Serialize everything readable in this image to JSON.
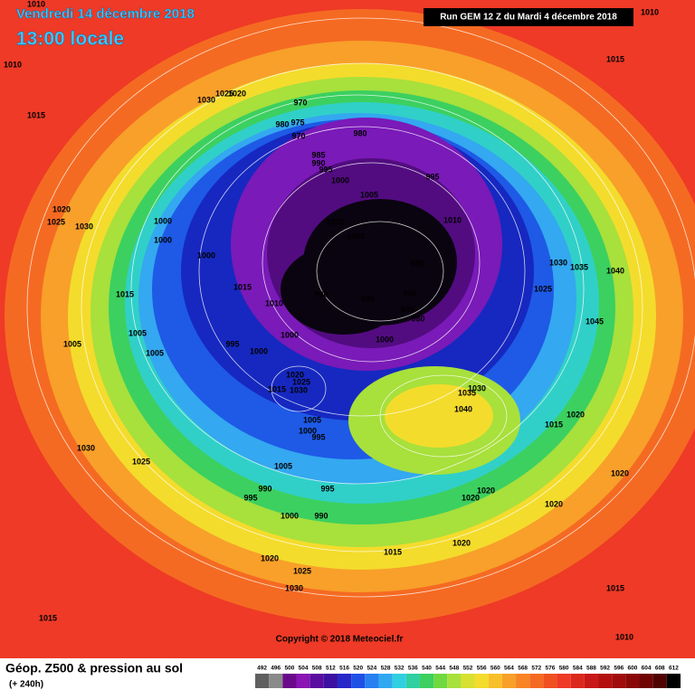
{
  "header": {
    "valid_date": "Vendredi 14 décembre 2018",
    "valid_time": "13:00 locale",
    "run": "Run GEM 12 Z du Mardi 4 décembre 2018"
  },
  "copyright": "Copyright © 2018 Meteociel.fr",
  "footer": {
    "title": "Géop. Z500 & pression au sol",
    "lead": "(+ 240h)"
  },
  "legend": {
    "labels": [
      492,
      496,
      500,
      504,
      508,
      512,
      516,
      520,
      524,
      528,
      532,
      536,
      540,
      544,
      548,
      552,
      556,
      560,
      564,
      568,
      572,
      576,
      580,
      584,
      588,
      592,
      596,
      600,
      604,
      608,
      612
    ]
  },
  "pressure_labels": [
    1010,
    1010,
    1015,
    1030,
    1025,
    1020,
    970,
    980,
    975,
    970,
    980,
    985,
    990,
    995,
    1000,
    995,
    1005,
    1020,
    1025,
    1030,
    1000,
    1000,
    1005,
    1000,
    1010,
    1000,
    990,
    1030,
    1035,
    1040,
    1015,
    1015,
    1010,
    990,
    995,
    990,
    985,
    980,
    1025,
    1045,
    1005,
    1000,
    1000,
    995,
    1000,
    1005,
    1005,
    1020,
    1025,
    1030,
    1015,
    1035,
    1030,
    1040,
    1005,
    1000,
    995,
    1015,
    1020,
    1030,
    1025,
    1005,
    990,
    995,
    995,
    1020,
    1020,
    1020,
    1020,
    1000,
    990,
    1015,
    1020,
    1020,
    1025,
    1030,
    1015,
    1015,
    1010,
    1010,
    1015
  ]
}
